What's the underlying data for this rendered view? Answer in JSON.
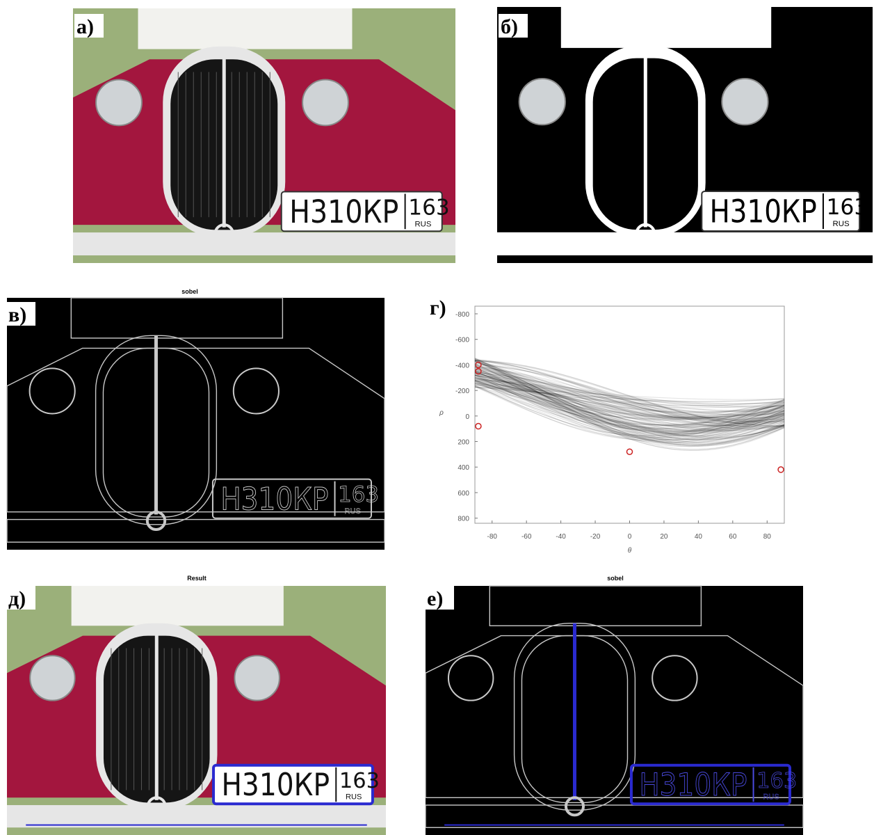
{
  "panels": [
    {
      "label": "а)"
    },
    {
      "label": "б)"
    },
    {
      "label": "в)",
      "title": "sobel"
    },
    {
      "label": "г)"
    },
    {
      "label": "д)",
      "title": "Result"
    },
    {
      "label": "е)",
      "title": "sobel"
    }
  ],
  "plate": {
    "number": "Н310КР",
    "region": "163",
    "country": "RUS"
  },
  "hough": {
    "xlabel": "θ",
    "ylabel": "ρ",
    "xlim": [
      -90,
      90
    ],
    "xticks": [
      -80,
      -60,
      -40,
      -20,
      0,
      20,
      40,
      60,
      80
    ],
    "ylim": [
      840,
      -860
    ],
    "yticks": [
      -800,
      -600,
      -400,
      -200,
      0,
      200,
      400,
      600,
      800
    ]
  }
}
